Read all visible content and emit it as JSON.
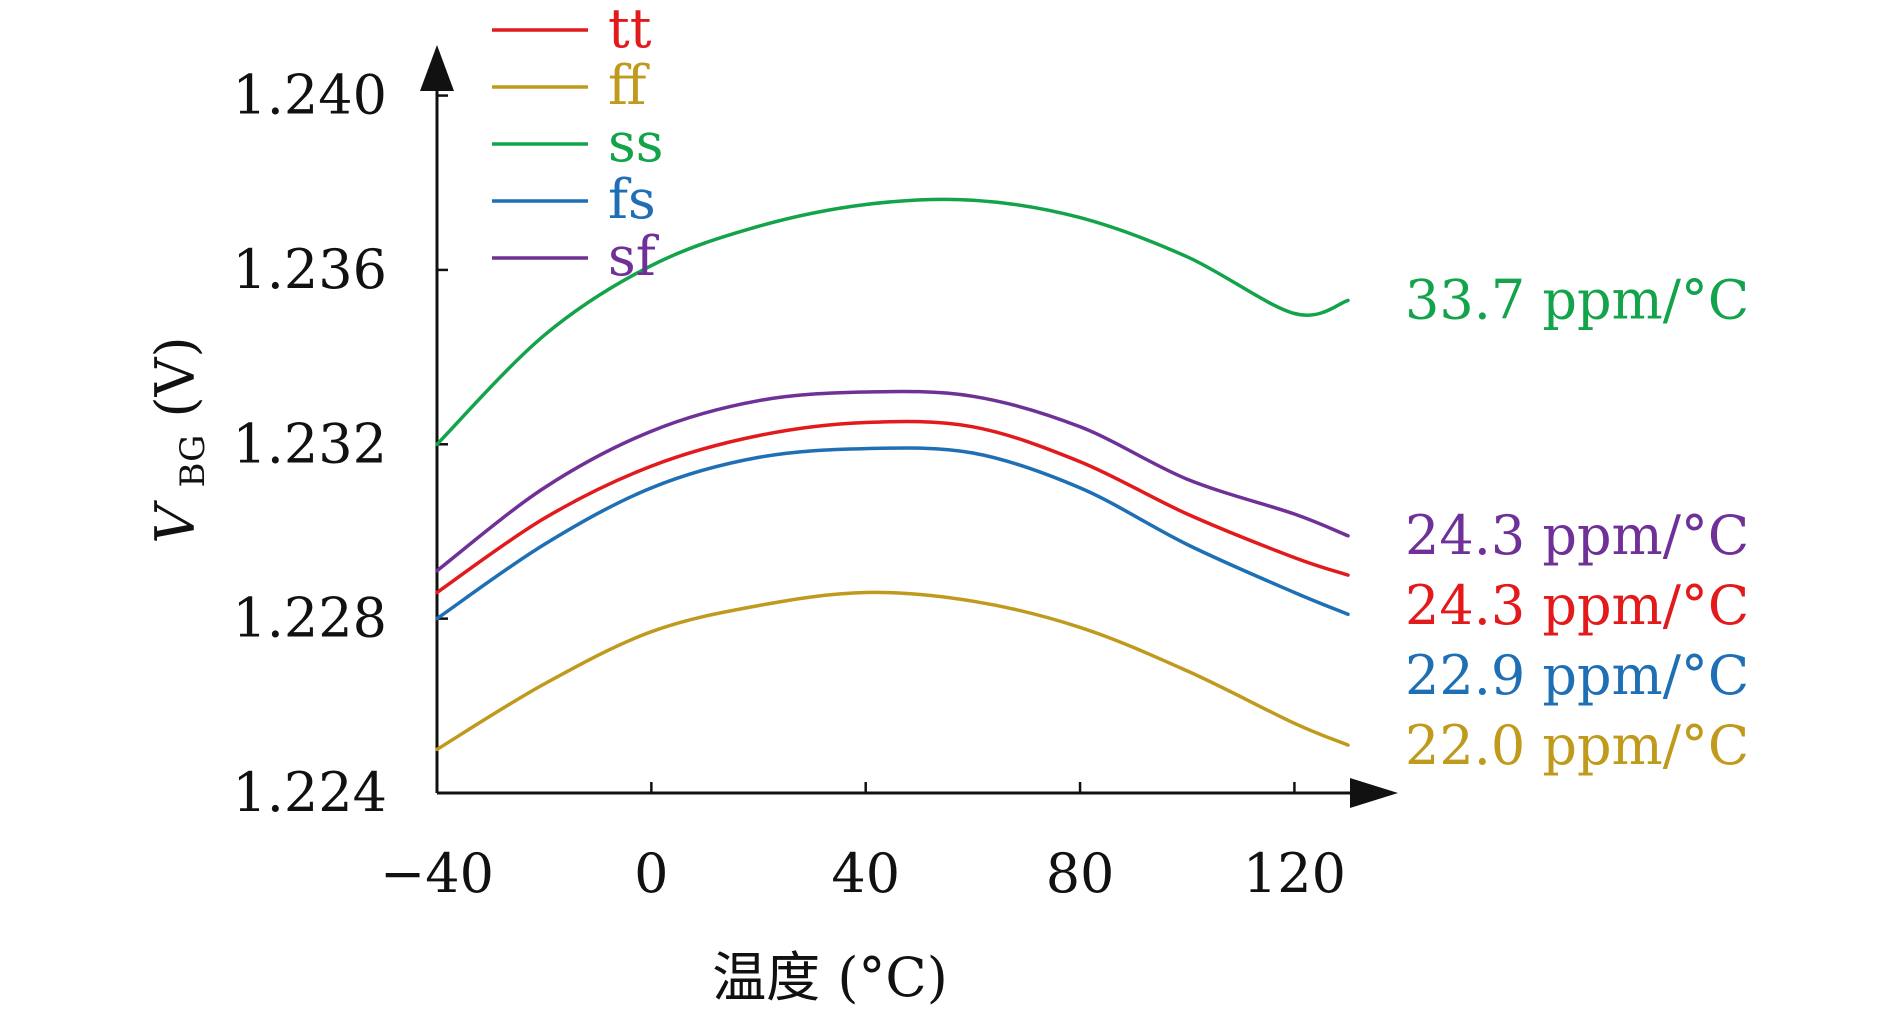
{
  "chart_data": {
    "type": "line",
    "xlabel": "温度 (°C)",
    "ylabel": {
      "base": "V",
      "subscript": "BG",
      "unit": " (V)"
    },
    "x_ticks": [
      "−40",
      "0",
      "40",
      "80",
      "120"
    ],
    "y_ticks": [
      "1.240",
      "1.236",
      "1.232",
      "1.228",
      "1.224"
    ],
    "x_tick_values": [
      -40,
      0,
      40,
      80,
      120
    ],
    "y_tick_values": [
      1.24,
      1.236,
      1.232,
      1.228,
      1.224
    ],
    "xlim": [
      -40,
      130
    ],
    "ylim": [
      1.224,
      1.2396
    ],
    "grid": false,
    "legend_placement": "top-left",
    "series": [
      {
        "name": "tt",
        "color": "#e31a1c",
        "annotation": "24.3 ppm/°C",
        "x": [
          -40,
          -20,
          0,
          20,
          40,
          60,
          80,
          100,
          120,
          130
        ],
        "values": [
          1.2286,
          1.2303,
          1.2315,
          1.2322,
          1.2325,
          1.2324,
          1.2316,
          1.2304,
          1.2294,
          1.229
        ]
      },
      {
        "name": "ff",
        "color": "#c09a1d",
        "annotation": "22.0 ppm/°C",
        "x": [
          -40,
          -20,
          0,
          20,
          40,
          60,
          80,
          100,
          120,
          130
        ],
        "values": [
          1.225,
          1.2265,
          1.2277,
          1.2283,
          1.2286,
          1.2284,
          1.2278,
          1.2268,
          1.2256,
          1.2251
        ]
      },
      {
        "name": "ss",
        "color": "#13a34a",
        "annotation": "33.7 ppm/°C",
        "x": [
          -40,
          -20,
          0,
          20,
          40,
          60,
          80,
          100,
          120,
          130
        ],
        "values": [
          1.232,
          1.2345,
          1.2361,
          1.237,
          1.2375,
          1.2376,
          1.2372,
          1.2363,
          1.235,
          1.2353
        ]
      },
      {
        "name": "fs",
        "color": "#1f6fb5",
        "annotation": "22.9 ppm/°C",
        "x": [
          -40,
          -20,
          0,
          20,
          40,
          60,
          80,
          100,
          120,
          130
        ],
        "values": [
          1.228,
          1.2297,
          1.231,
          1.2317,
          1.2319,
          1.2318,
          1.231,
          1.2297,
          1.2286,
          1.2281
        ]
      },
      {
        "name": "sf",
        "color": "#6f3198",
        "annotation": "24.3 ppm/°C",
        "x": [
          -40,
          -20,
          0,
          20,
          40,
          60,
          80,
          100,
          120,
          130
        ],
        "values": [
          1.2291,
          1.231,
          1.2323,
          1.233,
          1.2332,
          1.2331,
          1.2324,
          1.2312,
          1.2304,
          1.2299
        ]
      }
    ]
  }
}
